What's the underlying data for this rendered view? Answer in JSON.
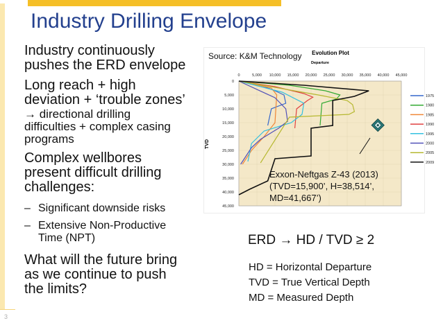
{
  "slide": {
    "title": "Industry Drilling Envelope",
    "page_number": "3",
    "bullets": [
      {
        "lines": [
          "Industry continuously",
          "pushes the ERD envelope"
        ]
      },
      {
        "lines": [
          "Long reach + high",
          "deviation + ‘trouble zones’"
        ]
      },
      {
        "lines": [
          "→ directional drilling",
          "difficulties + complex casing",
          "programs"
        ]
      },
      {
        "lines": [
          "Complex wellbores",
          "present difficult drilling",
          "challenges:"
        ]
      },
      {
        "lines": [
          "Significant downside risks"
        ]
      },
      {
        "lines": [
          "Extensive Non-Productive",
          "Time (NPT)"
        ]
      },
      {
        "lines": [
          "What will the future bring",
          "as we continue to push",
          "the limits?"
        ]
      }
    ],
    "sub_dash": "–",
    "source": "Source: K&M Technology",
    "equation": "ERD →  HD / TVD  ≥  2",
    "definitions": [
      "HD = Horizontal Departure",
      "TVD = True Vertical Depth",
      "MD = Measured Depth"
    ],
    "annotation": [
      "Exxon-Neftgas Z-43 (2013)",
      "(TVD=15,900’, H=38,514’,",
      "MD=41,667’)"
    ]
  },
  "chart_data": {
    "type": "line",
    "title": "Evolution Plot",
    "xlabel": "Departure",
    "ylabel": "TVD",
    "xlim": [
      0,
      45000
    ],
    "ylim": [
      0,
      45000
    ],
    "y_inverted": true,
    "x_ticks": [
      "0",
      "5,000",
      "10,000",
      "15,000",
      "20,000",
      "25,000",
      "30,000",
      "35,000",
      "40,000",
      "45,000"
    ],
    "y_ticks": [
      "0",
      "5,000",
      "10,000",
      "15,000",
      "20,000",
      "25,000",
      "30,000",
      "35,000",
      "40,000",
      "45,000"
    ],
    "legend_position": "right",
    "series": [
      {
        "name": "1975",
        "color": "#3366cc",
        "x": [
          0,
          6000,
          10000,
          12500,
          13000,
          9000,
          8000
        ],
        "y": [
          0,
          1500,
          3500,
          5000,
          8000,
          10000,
          16000
        ]
      },
      {
        "name": "1980",
        "color": "#33aa33",
        "x": [
          0,
          14000,
          24000,
          28000,
          27000,
          23000,
          22500
        ],
        "y": [
          0,
          1500,
          3500,
          5000,
          6500,
          8000,
          16000
        ]
      },
      {
        "name": "1985",
        "color": "#f08838",
        "x": [
          0,
          9000,
          10500,
          10000,
          7000,
          3500,
          1000
        ],
        "y": [
          0,
          2500,
          5000,
          15000,
          20000,
          25000,
          30000
        ]
      },
      {
        "name": "1990",
        "color": "#e04040",
        "x": [
          0,
          10000,
          18000,
          20500,
          19000,
          16000,
          15500
        ],
        "y": [
          0,
          2000,
          4500,
          5800,
          7000,
          10000,
          17000
        ]
      },
      {
        "name": "1995",
        "color": "#33c0e0",
        "x": [
          0,
          12000,
          18000,
          17500,
          14500,
          7000,
          3500,
          2500
        ],
        "y": [
          0,
          4000,
          8000,
          12000,
          15000,
          18000,
          22500,
          29000
        ]
      },
      {
        "name": "2000",
        "color": "#5050b8",
        "x": [
          0,
          10000,
          13000,
          13500,
          11000,
          6000,
          3500,
          500
        ],
        "y": [
          0,
          6000,
          10000,
          14500,
          17000,
          21000,
          24000,
          30000
        ]
      },
      {
        "name": "2005",
        "color": "#b6b830",
        "x": [
          0,
          22000,
          30000,
          31500,
          32000,
          30500,
          14000,
          6000
        ],
        "y": [
          0,
          5000,
          7000,
          8500,
          11000,
          12000,
          13000,
          29500
        ]
      },
      {
        "name": "2009",
        "color": "#111111",
        "x": [
          0,
          18000,
          36000,
          32000,
          26000,
          26000,
          20000,
          20000,
          10000,
          8000,
          3000,
          0
        ],
        "y": [
          0,
          1500,
          3500,
          5500,
          7000,
          16000,
          17000,
          27000,
          28000,
          36000,
          39000,
          41000
        ]
      }
    ],
    "marker": {
      "x": 38500,
      "y": 15900
    }
  }
}
